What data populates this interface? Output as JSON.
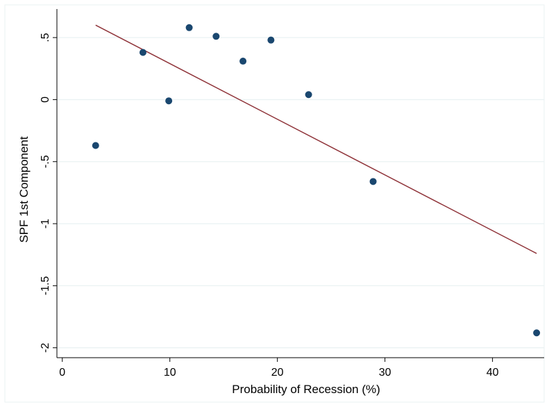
{
  "chart_data": {
    "type": "scatter",
    "xlabel": "Probability of Recession (%)",
    "ylabel": "SPF 1st Component",
    "xlim": [
      -0.5,
      44.8
    ],
    "ylim": [
      -2.08,
      0.73
    ],
    "x_ticks": [
      0,
      10,
      20,
      30,
      40
    ],
    "x_tick_labels": [
      "0",
      "10",
      "20",
      "30",
      "40"
    ],
    "y_ticks": [
      0.5,
      0,
      -0.5,
      -1,
      -1.5,
      -2
    ],
    "y_tick_labels": [
      ".5",
      "0",
      "-.5",
      "-1",
      "-1.5",
      "-2"
    ],
    "grid": "horizontal",
    "legend": "none",
    "series": [
      {
        "type": "scatter",
        "color": "#1a476f",
        "points": [
          {
            "x": 3.1,
            "y": -0.37
          },
          {
            "x": 7.5,
            "y": 0.38
          },
          {
            "x": 9.9,
            "y": -0.01
          },
          {
            "x": 11.8,
            "y": 0.58
          },
          {
            "x": 14.3,
            "y": 0.51
          },
          {
            "x": 16.8,
            "y": 0.31
          },
          {
            "x": 19.4,
            "y": 0.48
          },
          {
            "x": 22.9,
            "y": 0.04
          },
          {
            "x": 28.9,
            "y": -0.66
          },
          {
            "x": 44.1,
            "y": -1.88
          }
        ]
      },
      {
        "type": "line",
        "color": "#90353b",
        "points": [
          {
            "x": 3.1,
            "y": 0.6
          },
          {
            "x": 44.1,
            "y": -1.24
          }
        ]
      }
    ]
  }
}
